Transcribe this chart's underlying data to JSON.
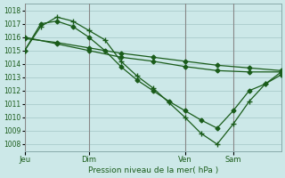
{
  "background_color": "#cce8e8",
  "grid_color": "#aacccc",
  "line_color": "#1a5c1a",
  "title": "Pression niveau de la mer( hPa )",
  "ylim": [
    1007.5,
    1018.5
  ],
  "yticks": [
    1008,
    1009,
    1010,
    1011,
    1012,
    1013,
    1014,
    1015,
    1016,
    1017,
    1018
  ],
  "day_labels": [
    "Jeu",
    "Dim",
    "Ven",
    "Sam"
  ],
  "day_positions": [
    0,
    8,
    20,
    26
  ],
  "xlim": [
    0,
    32
  ],
  "series": [
    {
      "x": [
        0,
        4,
        8,
        12,
        16,
        20,
        24,
        28,
        32
      ],
      "y": [
        1015.9,
        1015.6,
        1015.2,
        1014.8,
        1014.5,
        1014.2,
        1013.9,
        1013.7,
        1013.5
      ],
      "marker": "D",
      "markersize": 2.5
    },
    {
      "x": [
        0,
        2,
        4,
        6,
        8,
        10,
        12,
        14,
        16,
        18,
        20,
        22,
        24,
        26,
        28,
        30,
        32
      ],
      "y": [
        1015.0,
        1016.8,
        1017.5,
        1017.2,
        1016.5,
        1015.8,
        1014.2,
        1013.1,
        1012.2,
        1011.1,
        1010.0,
        1008.8,
        1008.0,
        1009.5,
        1011.2,
        1012.5,
        1013.4
      ],
      "marker": "+",
      "markersize": 4
    },
    {
      "x": [
        0,
        2,
        4,
        6,
        8,
        10,
        12,
        14,
        16,
        18,
        20,
        22,
        24,
        26,
        28,
        30,
        32
      ],
      "y": [
        1015.0,
        1017.0,
        1017.2,
        1016.8,
        1016.0,
        1015.0,
        1013.8,
        1012.8,
        1012.0,
        1011.2,
        1010.5,
        1009.8,
        1009.2,
        1010.5,
        1012.0,
        1012.5,
        1013.2
      ],
      "marker": "D",
      "markersize": 2.5
    },
    {
      "x": [
        0,
        4,
        8,
        12,
        16,
        20,
        24,
        28,
        32
      ],
      "y": [
        1016.0,
        1015.5,
        1015.0,
        1014.5,
        1014.2,
        1013.8,
        1013.5,
        1013.4,
        1013.4
      ],
      "marker": "D",
      "markersize": 2.5
    }
  ]
}
